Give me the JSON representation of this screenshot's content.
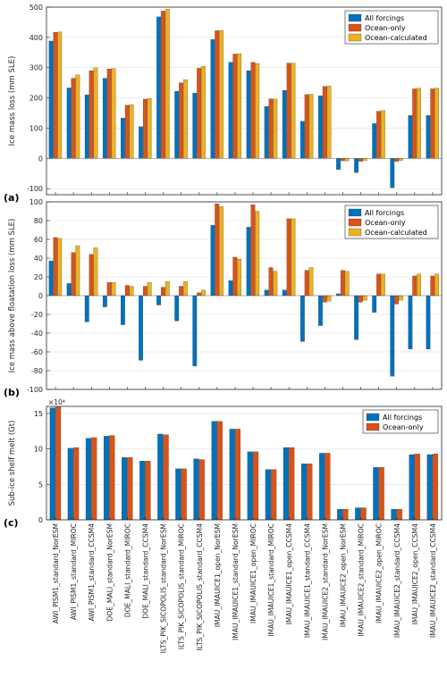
{
  "colors": {
    "all": "#0072BD",
    "ocean": "#D95319",
    "calc": "#EDB120"
  },
  "categories": [
    "AWI_PISM1_standard_NorESM",
    "AWI_PISM1_standard_MIROC",
    "AWI_PISM1_standard_CCSM4",
    "DOE_MALI_standard_NorESM",
    "DOE_MALI_standard_MIROC",
    "DOE_MALI_standard_CCSM4",
    "ILTS_PIK_SICOPOLIS_standard_NorESM",
    "ILTS_PIK_SICOPOLIS_standard_MIROC",
    "ILTS_PIK_SICOPOLIS_standard_CCSM4",
    "IMAU_IMAUICE1_open_NorESM",
    "IMAU_IMAUICE1_standard_NorESM",
    "IMAU_IMAUICE1_open_MIROC",
    "IMAU_IMAUICE1_standard_MIROC",
    "IMAU_IMAUICE1_open_CCSM4",
    "IMAU_IMAUICE1_standard_CCSM4",
    "IMAU_IMAUICE2_standard_NorESM",
    "IMAU_IMAUICE2_open_NorESM",
    "IMAU_IMAUICE2_standard_MIROC",
    "IMAU_IMAUICE2_open_MIROC",
    "IMAU_IMAUICE2_standard_CCSM4",
    "IMAU_IMAUICE2_open_CCSM4",
    "IMAU_IMAUICE2_standard_CCSM4"
  ],
  "chart_data": [
    {
      "type": "bar",
      "panel_label": "(a)",
      "ylabel": "Ice mass loss (mm SLE)",
      "ylim": [
        -120,
        500
      ],
      "yticks": [
        -100,
        0,
        100,
        200,
        300,
        400,
        500
      ],
      "ytick_labels": [
        "-100",
        "0",
        "100",
        "200",
        "300",
        "400",
        "500"
      ],
      "grid": true,
      "legend_position": "top-right",
      "series": [
        {
          "name": "All forcings",
          "color_key": "all",
          "values": [
            388,
            233,
            210,
            265,
            133,
            105,
            468,
            222,
            216,
            393,
            318,
            290,
            172,
            225,
            123,
            207,
            -37,
            -47,
            115,
            -97,
            142,
            142
          ]
        },
        {
          "name": "Ocean-only",
          "color_key": "ocean",
          "values": [
            417,
            265,
            290,
            296,
            176,
            196,
            487,
            250,
            298,
            422,
            345,
            318,
            197,
            315,
            211,
            238,
            -8,
            -10,
            156,
            -10,
            230,
            230
          ]
        },
        {
          "name": "Ocean-calculated",
          "color_key": "calc",
          "values": [
            418,
            276,
            300,
            297,
            178,
            198,
            493,
            260,
            305,
            423,
            346,
            314,
            196,
            315,
            212,
            239,
            -8,
            -7,
            158,
            -7,
            232,
            232
          ]
        }
      ]
    },
    {
      "type": "bar",
      "panel_label": "(b)",
      "ylabel": "Ice mass above floatation loss (mm SLE)",
      "ylim": [
        -100,
        100
      ],
      "yticks": [
        -100,
        -80,
        -60,
        -40,
        -20,
        0,
        20,
        40,
        60,
        80,
        100
      ],
      "ytick_labels": [
        "-100",
        "-80",
        "-60",
        "-40",
        "-20",
        "0",
        "20",
        "40",
        "60",
        "80",
        "100"
      ],
      "grid": true,
      "legend_position": "top-right",
      "series": [
        {
          "name": "All forcings",
          "color_key": "all",
          "values": [
            37,
            13,
            -28,
            -12,
            -31,
            -69,
            -10,
            -27,
            -75,
            75,
            16,
            73,
            6,
            6,
            -49,
            -32,
            2,
            -47,
            -18,
            -86,
            -57,
            -57
          ]
        },
        {
          "name": "Ocean-only",
          "color_key": "ocean",
          "values": [
            62,
            46,
            44,
            14,
            11,
            10,
            9,
            10,
            3,
            98,
            41,
            97,
            30,
            82,
            27,
            -7,
            27,
            -7,
            23,
            -9,
            21,
            21
          ]
        },
        {
          "name": "Ocean-calculated",
          "color_key": "calc",
          "values": [
            61,
            53,
            51,
            14,
            10,
            14,
            15,
            15,
            6,
            95,
            39,
            90,
            26,
            82,
            30,
            -6,
            26,
            -5,
            23,
            -5,
            23,
            23
          ]
        }
      ]
    },
    {
      "type": "bar",
      "panel_label": "(c)",
      "ylabel": "Sub-ice shelf melt (Gt)",
      "exponent_label": "×10⁴",
      "ylim": [
        0,
        16
      ],
      "yticks": [
        0,
        5,
        10,
        15
      ],
      "ytick_labels": [
        "0",
        "5",
        "10",
        "15"
      ],
      "grid": true,
      "legend_position": "top-right",
      "series": [
        {
          "name": "All forcings",
          "color_key": "all",
          "values": [
            15.8,
            10.1,
            11.5,
            11.8,
            8.8,
            8.3,
            12.1,
            7.2,
            8.6,
            13.9,
            12.8,
            9.6,
            7.1,
            10.2,
            7.9,
            9.4,
            1.5,
            1.7,
            7.4,
            1.5,
            9.2,
            9.2
          ]
        },
        {
          "name": "Ocean-only",
          "color_key": "ocean",
          "values": [
            15.9,
            10.2,
            11.6,
            11.9,
            8.8,
            8.3,
            12.0,
            7.2,
            8.5,
            13.9,
            12.8,
            9.6,
            7.1,
            10.2,
            7.9,
            9.4,
            1.5,
            1.7,
            7.4,
            1.5,
            9.3,
            9.3
          ]
        }
      ]
    }
  ]
}
